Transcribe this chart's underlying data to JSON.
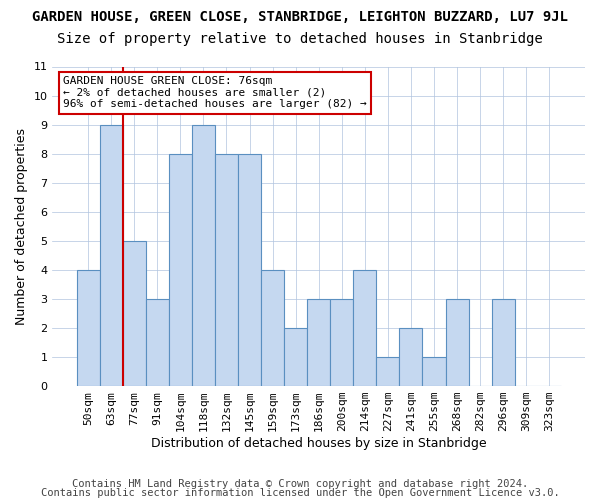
{
  "title": "GARDEN HOUSE, GREEN CLOSE, STANBRIDGE, LEIGHTON BUZZARD, LU7 9JL",
  "subtitle": "Size of property relative to detached houses in Stanbridge",
  "xlabel": "Distribution of detached houses by size in Stanbridge",
  "ylabel": "Number of detached properties",
  "categories": [
    "50sqm",
    "63sqm",
    "77sqm",
    "91sqm",
    "104sqm",
    "118sqm",
    "132sqm",
    "145sqm",
    "159sqm",
    "173sqm",
    "186sqm",
    "200sqm",
    "214sqm",
    "227sqm",
    "241sqm",
    "255sqm",
    "268sqm",
    "282sqm",
    "296sqm",
    "309sqm",
    "323sqm"
  ],
  "values": [
    4,
    9,
    5,
    3,
    8,
    9,
    8,
    8,
    4,
    2,
    3,
    3,
    4,
    1,
    2,
    1,
    3,
    0,
    3,
    0,
    0
  ],
  "bar_color": "#c5d8f0",
  "bar_edge_color": "#5a8fc0",
  "vline_x": 1.5,
  "vline_color": "#cc0000",
  "ylim": [
    0,
    11
  ],
  "yticks": [
    0,
    1,
    2,
    3,
    4,
    5,
    6,
    7,
    8,
    9,
    10,
    11
  ],
  "annotation_title": "GARDEN HOUSE GREEN CLOSE: 76sqm",
  "annotation_line1": "← 2% of detached houses are smaller (2)",
  "annotation_line2": "96% of semi-detached houses are larger (82) →",
  "annotation_box_color": "#ffffff",
  "annotation_border_color": "#cc0000",
  "footer1": "Contains HM Land Registry data © Crown copyright and database right 2024.",
  "footer2": "Contains public sector information licensed under the Open Government Licence v3.0.",
  "title_fontsize": 10,
  "subtitle_fontsize": 10,
  "xlabel_fontsize": 9,
  "ylabel_fontsize": 9,
  "tick_fontsize": 8,
  "footer_fontsize": 7.5
}
